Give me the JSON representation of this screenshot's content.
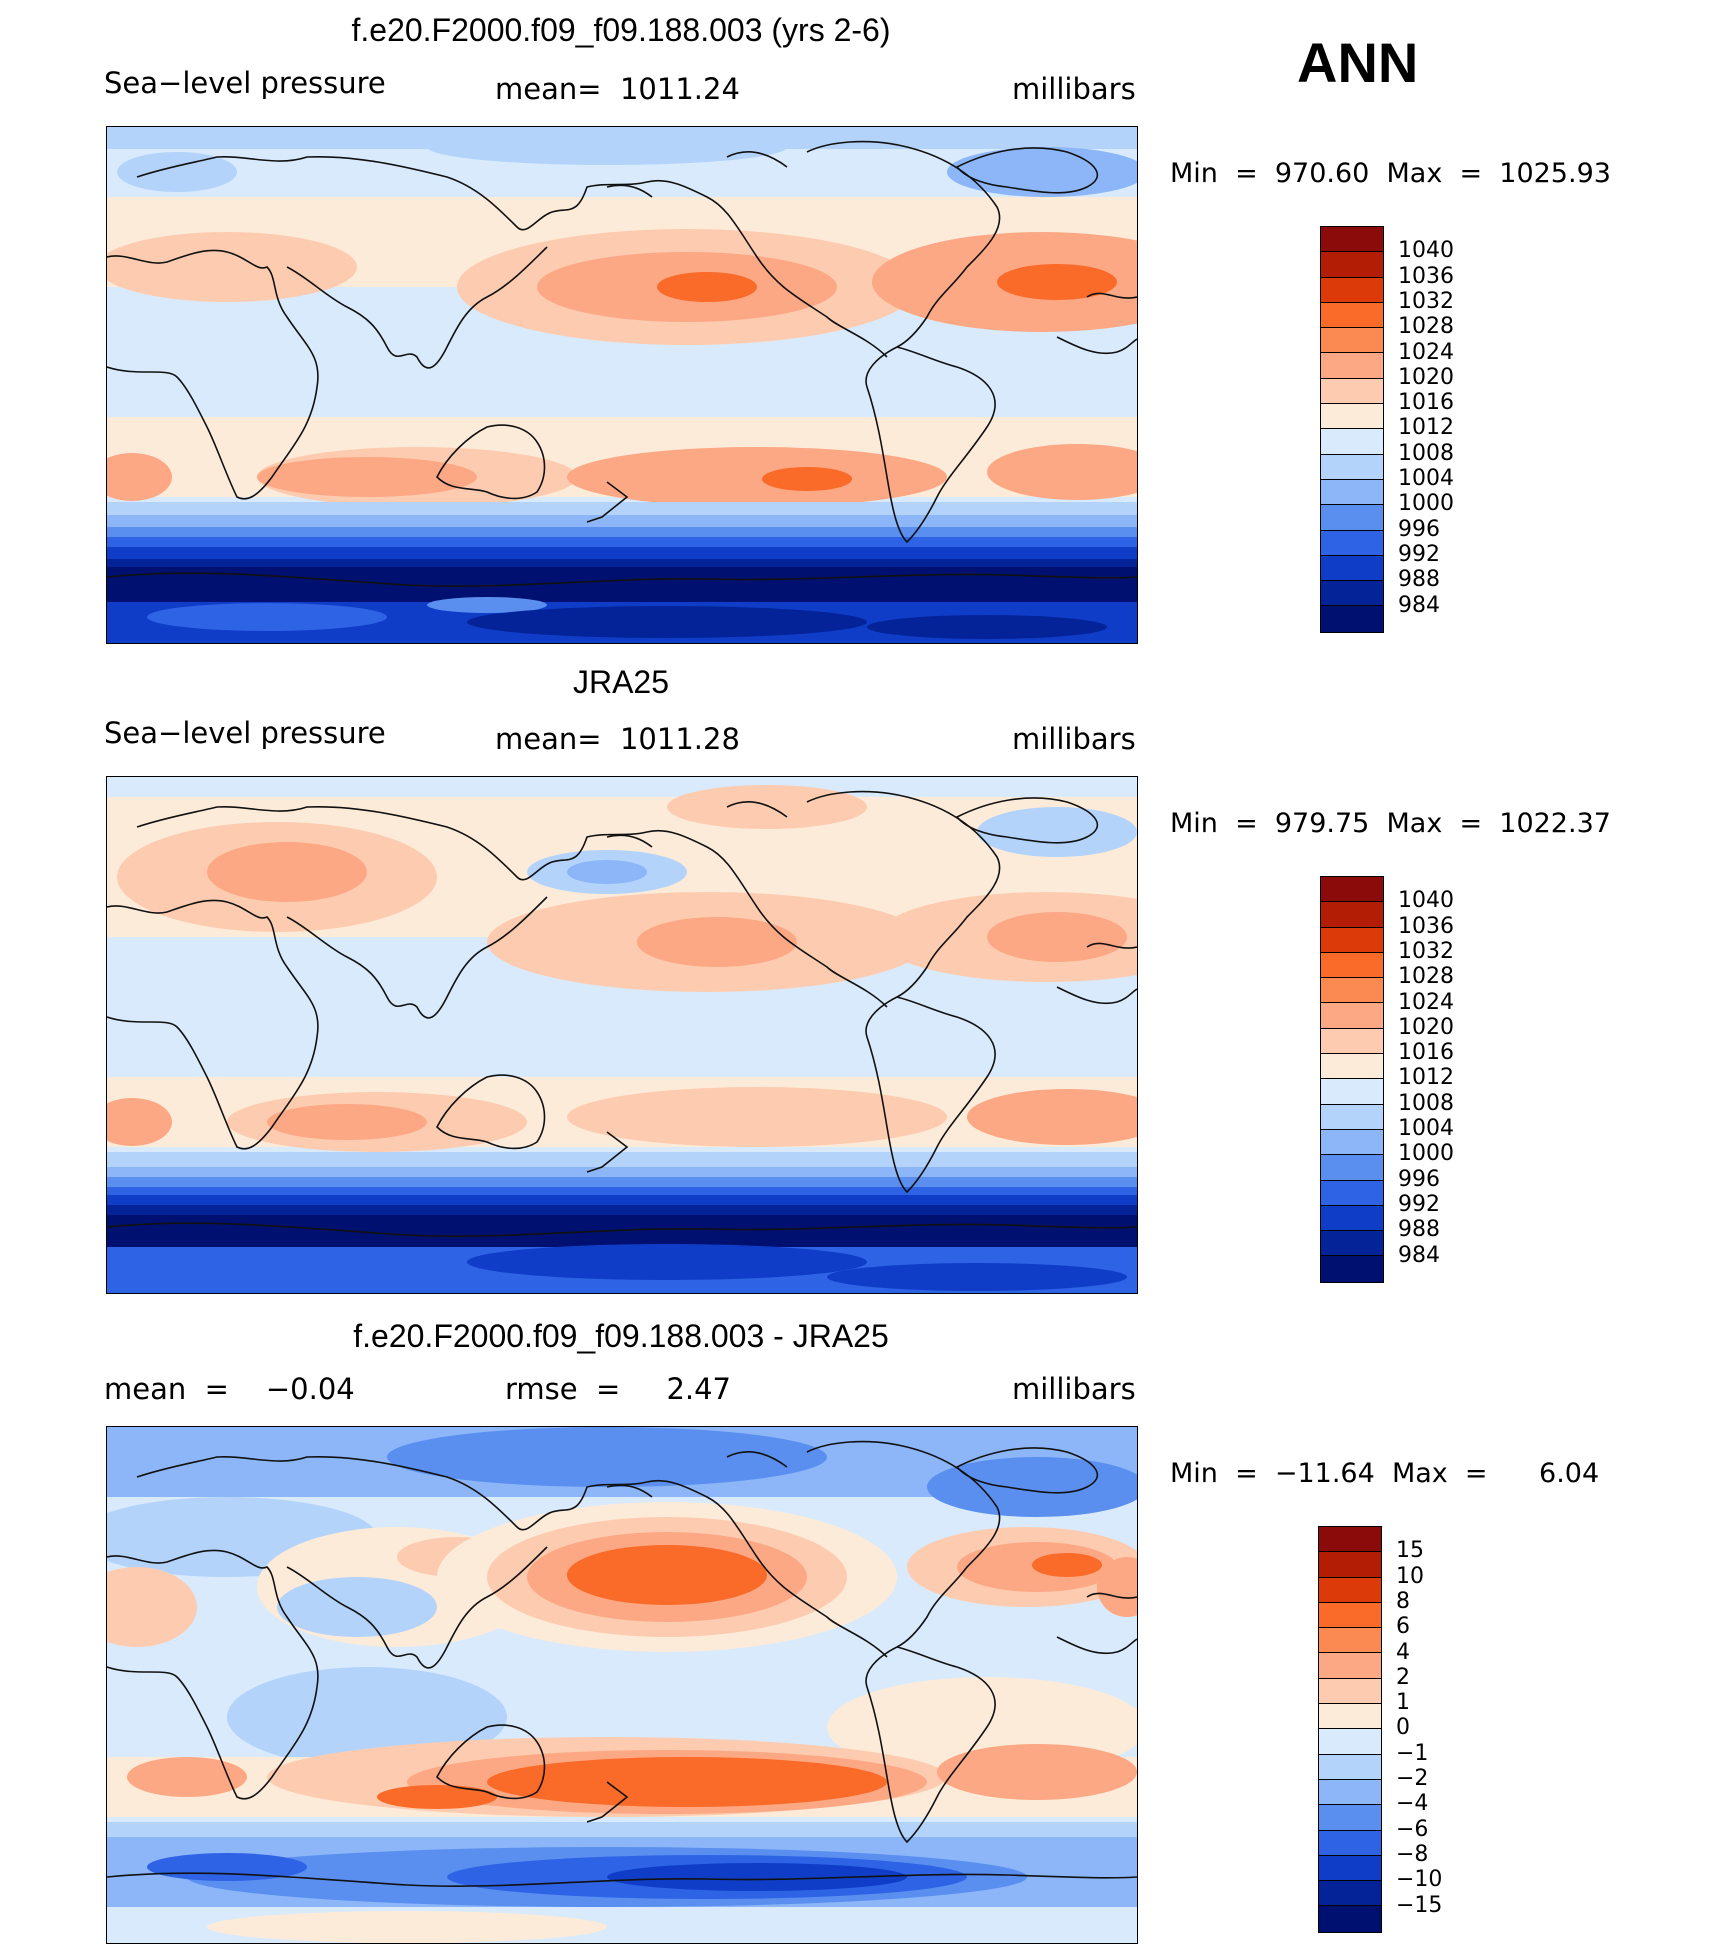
{
  "season": "ANN",
  "land_stroke": "#111111",
  "panels": [
    {
      "title": "f.e20.F2000.f09_f09.188.003 (yrs 2-6)",
      "left": "Sea−level pressure",
      "center": "mean=  1011.24",
      "right": "millibars",
      "minmax": "Min  =  970.60  Max  =  1025.93",
      "colorbar": "abs"
    },
    {
      "title": "JRA25",
      "left": "Sea−level pressure",
      "center": "mean=  1011.28",
      "right": "millibars",
      "minmax": "Min  =  979.75  Max  =  1022.37",
      "colorbar": "abs"
    },
    {
      "title": "f.e20.F2000.f09_f09.188.003 - JRA25",
      "left": "mean  =    −0.04",
      "center": "rmse  =     2.47",
      "right": "millibars",
      "minmax": "Min  =  −11.64  Max  =      6.04",
      "colorbar": "diff"
    }
  ],
  "colorbars": {
    "abs": {
      "labels": [
        "1040",
        "1036",
        "1032",
        "1028",
        "1024",
        "1020",
        "1016",
        "1012",
        "1008",
        "1004",
        "1000",
        "996",
        "992",
        "988",
        "984"
      ],
      "colors": [
        "#8b0a0a",
        "#b31d05",
        "#dc3a08",
        "#fa6a28",
        "#fb8a52",
        "#fca885",
        "#fdccb0",
        "#fdebd9",
        "#d8eafb",
        "#b3d3fb",
        "#8cb6f8",
        "#5a8ff0",
        "#2e63e6",
        "#0f3dc7",
        "#042398",
        "#001070"
      ]
    },
    "diff": {
      "labels": [
        "15",
        "10",
        "8",
        "6",
        "4",
        "2",
        "1",
        "0",
        "−1",
        "−2",
        "−4",
        "−6",
        "−8",
        "−10",
        "−15"
      ],
      "colors": [
        "#8b0a0a",
        "#b31d05",
        "#dc3a08",
        "#fa6a28",
        "#fb8a52",
        "#fca885",
        "#fdccb0",
        "#fdebd9",
        "#d8eafb",
        "#b3d3fb",
        "#8cb6f8",
        "#5a8ff0",
        "#2e63e6",
        "#0f3dc7",
        "#042398",
        "#001070"
      ]
    }
  }
}
